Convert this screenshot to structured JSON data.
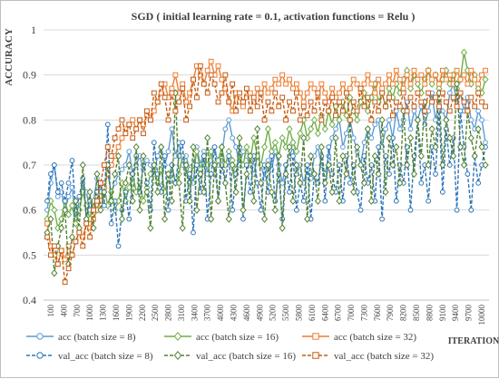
{
  "chart_data": {
    "type": "line",
    "title": "SGD ( initial learning rate = 0.1, activation functions = Relu )",
    "xlabel": "ITERATION",
    "ylabel": "ACCURACY",
    "ylim": [
      0.4,
      1.0
    ],
    "yticks": [
      "0.4",
      "0.5",
      "0.6",
      "0.7",
      "0.8",
      "0.9",
      "1"
    ],
    "x_tick_labels": [
      "100",
      "400",
      "700",
      "1000",
      "1300",
      "1600",
      "1900",
      "2200",
      "2500",
      "2800",
      "3100",
      "3400",
      "3700",
      "4000",
      "4300",
      "4600",
      "4900",
      "5200",
      "5500",
      "5800",
      "6100",
      "6400",
      "6700",
      "7000",
      "7300",
      "7600",
      "7900",
      "8200",
      "8500",
      "8800",
      "9100",
      "9400",
      "9700",
      "10000"
    ],
    "grid": true,
    "legend_position": "bottom",
    "series": [
      {
        "name": "acc (batch size = 8)",
        "color": "#5b9bd5",
        "dash": false,
        "marker": "circle",
        "values": [
          0.6,
          0.66,
          0.7,
          0.63,
          0.64,
          0.6,
          0.63,
          0.65,
          0.58,
          0.62,
          0.66,
          0.64,
          0.6,
          0.62,
          0.67,
          0.64,
          0.66,
          0.68,
          0.64,
          0.66,
          0.68,
          0.69,
          0.7,
          0.73,
          0.68,
          0.7,
          0.72,
          0.69,
          0.71,
          0.7,
          0.68,
          0.72,
          0.74,
          0.7,
          0.73,
          0.78,
          0.72,
          0.75,
          0.7,
          0.72,
          0.69,
          0.66,
          0.74,
          0.7,
          0.73,
          0.68,
          0.71,
          0.74,
          0.7,
          0.72,
          0.78,
          0.8,
          0.76,
          0.74,
          0.7,
          0.73,
          0.72,
          0.7,
          0.68,
          0.72,
          0.7,
          0.67,
          0.71,
          0.69,
          0.73,
          0.7,
          0.66,
          0.7,
          0.72,
          0.74,
          0.68,
          0.7,
          0.66,
          0.69,
          0.67,
          0.72,
          0.74,
          0.7,
          0.68,
          0.72,
          0.76,
          0.78,
          0.8,
          0.74,
          0.77,
          0.8,
          0.76,
          0.73,
          0.7,
          0.75,
          0.78,
          0.76,
          0.79,
          0.8,
          0.74,
          0.78,
          0.8,
          0.76,
          0.82,
          0.78,
          0.8,
          0.84,
          0.78,
          0.82,
          0.8,
          0.83,
          0.79,
          0.82,
          0.86,
          0.8,
          0.84,
          0.82,
          0.8,
          0.86,
          0.88,
          0.84,
          0.86,
          0.82,
          0.85,
          0.8,
          0.78,
          0.82,
          0.8,
          0.75
        ]
      },
      {
        "name": "acc (batch size = 16)",
        "color": "#70ad47",
        "dash": false,
        "marker": "diamond",
        "values": [
          0.58,
          0.62,
          0.6,
          0.56,
          0.58,
          0.62,
          0.59,
          0.61,
          0.57,
          0.6,
          0.64,
          0.61,
          0.58,
          0.62,
          0.6,
          0.63,
          0.65,
          0.61,
          0.64,
          0.6,
          0.62,
          0.66,
          0.62,
          0.65,
          0.68,
          0.64,
          0.66,
          0.62,
          0.65,
          0.68,
          0.7,
          0.66,
          0.69,
          0.64,
          0.67,
          0.7,
          0.66,
          0.68,
          0.72,
          0.69,
          0.66,
          0.7,
          0.73,
          0.69,
          0.72,
          0.7,
          0.73,
          0.68,
          0.71,
          0.74,
          0.7,
          0.73,
          0.71,
          0.69,
          0.72,
          0.7,
          0.74,
          0.71,
          0.76,
          0.72,
          0.7,
          0.74,
          0.78,
          0.73,
          0.75,
          0.72,
          0.76,
          0.74,
          0.78,
          0.75,
          0.73,
          0.77,
          0.8,
          0.76,
          0.78,
          0.8,
          0.77,
          0.81,
          0.78,
          0.82,
          0.79,
          0.83,
          0.8,
          0.84,
          0.81,
          0.85,
          0.82,
          0.8,
          0.84,
          0.86,
          0.82,
          0.85,
          0.88,
          0.84,
          0.86,
          0.83,
          0.87,
          0.85,
          0.88,
          0.86,
          0.89,
          0.91,
          0.87,
          0.9,
          0.88,
          0.86,
          0.89,
          0.91,
          0.88,
          0.9,
          0.87,
          0.89,
          0.91,
          0.88,
          0.9,
          0.87,
          0.89,
          0.95,
          0.91,
          0.88,
          0.9,
          0.87,
          0.86,
          0.89
        ]
      },
      {
        "name": "acc (batch size = 32)",
        "color": "#ed7d31",
        "dash": false,
        "marker": "square",
        "values": [
          0.57,
          0.52,
          0.5,
          0.48,
          0.51,
          0.49,
          0.52,
          0.5,
          0.53,
          0.55,
          0.54,
          0.57,
          0.56,
          0.58,
          0.6,
          0.62,
          0.65,
          0.68,
          0.7,
          0.72,
          0.74,
          0.76,
          0.78,
          0.79,
          0.8,
          0.78,
          0.8,
          0.79,
          0.81,
          0.8,
          0.82,
          0.84,
          0.86,
          0.88,
          0.85,
          0.87,
          0.9,
          0.86,
          0.88,
          0.84,
          0.86,
          0.89,
          0.92,
          0.9,
          0.88,
          0.91,
          0.93,
          0.9,
          0.92,
          0.89,
          0.87,
          0.84,
          0.82,
          0.86,
          0.84,
          0.83,
          0.85,
          0.86,
          0.84,
          0.87,
          0.85,
          0.88,
          0.86,
          0.87,
          0.89,
          0.88,
          0.9,
          0.88,
          0.89,
          0.87,
          0.88,
          0.86,
          0.84,
          0.86,
          0.88,
          0.87,
          0.85,
          0.88,
          0.86,
          0.84,
          0.87,
          0.85,
          0.86,
          0.88,
          0.86,
          0.87,
          0.89,
          0.88,
          0.86,
          0.88,
          0.9,
          0.88,
          0.86,
          0.89,
          0.87,
          0.88,
          0.9,
          0.88,
          0.91,
          0.89,
          0.87,
          0.9,
          0.88,
          0.91,
          0.89,
          0.9,
          0.88,
          0.91,
          0.89,
          0.9,
          0.88,
          0.91,
          0.89,
          0.9,
          0.88,
          0.91,
          0.89,
          0.9,
          0.88,
          0.91,
          0.89,
          0.88,
          0.9,
          0.91
        ]
      },
      {
        "name": "val_acc (batch size = 8)",
        "color": "#2e75b6",
        "dash": true,
        "marker": "circle",
        "values": [
          0.62,
          0.68,
          0.7,
          0.64,
          0.66,
          0.62,
          0.66,
          0.71,
          0.6,
          0.63,
          0.67,
          0.58,
          0.62,
          0.6,
          0.64,
          0.66,
          0.61,
          0.79,
          0.57,
          0.62,
          0.52,
          0.6,
          0.64,
          0.58,
          0.68,
          0.72,
          0.64,
          0.7,
          0.66,
          0.6,
          0.75,
          0.68,
          0.64,
          0.72,
          0.6,
          0.7,
          0.66,
          0.72,
          0.75,
          0.62,
          0.68,
          0.55,
          0.7,
          0.64,
          0.72,
          0.58,
          0.68,
          0.74,
          0.62,
          0.7,
          0.66,
          0.72,
          0.6,
          0.68,
          0.74,
          0.58,
          0.7,
          0.64,
          0.72,
          0.66,
          0.6,
          0.7,
          0.64,
          0.72,
          0.62,
          0.68,
          0.58,
          0.7,
          0.64,
          0.72,
          0.6,
          0.66,
          0.62,
          0.7,
          0.58,
          0.68,
          0.66,
          0.72,
          0.62,
          0.74,
          0.68,
          0.64,
          0.7,
          0.62,
          0.72,
          0.66,
          0.7,
          0.64,
          0.6,
          0.72,
          0.66,
          0.7,
          0.62,
          0.74,
          0.58,
          0.72,
          0.68,
          0.76,
          0.62,
          0.7,
          0.66,
          0.74,
          0.6,
          0.72,
          0.8,
          0.66,
          0.7,
          0.62,
          0.74,
          0.68,
          0.82,
          0.64,
          0.78,
          0.7,
          0.76,
          0.6,
          0.82,
          0.74,
          0.68,
          0.6,
          0.72,
          0.66,
          0.7,
          0.74
        ]
      },
      {
        "name": "val_acc (batch size = 16)",
        "color": "#548235",
        "dash": true,
        "marker": "diamond",
        "values": [
          0.55,
          0.58,
          0.46,
          0.52,
          0.56,
          0.6,
          0.48,
          0.54,
          0.62,
          0.56,
          0.7,
          0.58,
          0.64,
          0.56,
          0.68,
          0.6,
          0.64,
          0.7,
          0.62,
          0.68,
          0.72,
          0.58,
          0.66,
          0.7,
          0.62,
          0.74,
          0.6,
          0.72,
          0.64,
          0.56,
          0.7,
          0.64,
          0.74,
          0.58,
          0.68,
          0.62,
          0.86,
          0.66,
          0.56,
          0.7,
          0.62,
          0.74,
          0.6,
          0.68,
          0.64,
          0.76,
          0.58,
          0.7,
          0.62,
          0.74,
          0.66,
          0.58,
          0.7,
          0.64,
          0.76,
          0.6,
          0.68,
          0.72,
          0.62,
          0.78,
          0.66,
          0.58,
          0.7,
          0.64,
          0.6,
          0.72,
          0.56,
          0.68,
          0.74,
          0.62,
          0.7,
          0.66,
          0.76,
          0.58,
          0.72,
          0.68,
          0.62,
          0.74,
          0.66,
          0.7,
          0.64,
          0.76,
          0.62,
          0.72,
          0.68,
          0.8,
          0.64,
          0.74,
          0.7,
          0.66,
          0.78,
          0.62,
          0.72,
          0.68,
          0.8,
          0.64,
          0.76,
          0.7,
          0.74,
          0.66,
          0.82,
          0.7,
          0.76,
          0.68,
          0.8,
          0.72,
          0.84,
          0.7,
          0.78,
          0.74,
          0.86,
          0.7,
          0.8,
          0.76,
          0.72,
          0.88,
          0.74,
          0.7,
          0.82,
          0.76,
          0.72,
          0.78,
          0.74,
          0.7
        ]
      },
      {
        "name": "val_acc (batch size = 32)",
        "color": "#c55a11",
        "dash": true,
        "marker": "square",
        "values": [
          0.54,
          0.5,
          0.52,
          0.48,
          0.51,
          0.44,
          0.47,
          0.5,
          0.53,
          0.55,
          0.52,
          0.57,
          0.54,
          0.6,
          0.62,
          0.66,
          0.7,
          0.74,
          0.72,
          0.76,
          0.78,
          0.8,
          0.77,
          0.79,
          0.76,
          0.78,
          0.8,
          0.77,
          0.82,
          0.8,
          0.86,
          0.84,
          0.88,
          0.85,
          0.8,
          0.86,
          0.82,
          0.84,
          0.87,
          0.8,
          0.83,
          0.89,
          0.85,
          0.92,
          0.88,
          0.86,
          0.9,
          0.88,
          0.84,
          0.86,
          0.9,
          0.84,
          0.88,
          0.82,
          0.86,
          0.84,
          0.87,
          0.82,
          0.85,
          0.83,
          0.86,
          0.8,
          0.84,
          0.82,
          0.86,
          0.83,
          0.85,
          0.8,
          0.84,
          0.82,
          0.86,
          0.8,
          0.83,
          0.81,
          0.84,
          0.82,
          0.86,
          0.8,
          0.84,
          0.82,
          0.85,
          0.81,
          0.84,
          0.82,
          0.86,
          0.8,
          0.84,
          0.82,
          0.87,
          0.83,
          0.85,
          0.8,
          0.84,
          0.82,
          0.86,
          0.83,
          0.85,
          0.81,
          0.84,
          0.83,
          0.86,
          0.82,
          0.85,
          0.83,
          0.86,
          0.84,
          0.82,
          0.86,
          0.84,
          0.85,
          0.83,
          0.86,
          0.84,
          0.82,
          0.85,
          0.83,
          0.86,
          0.84,
          0.82,
          0.85,
          0.83,
          0.86,
          0.84,
          0.83
        ]
      }
    ]
  }
}
